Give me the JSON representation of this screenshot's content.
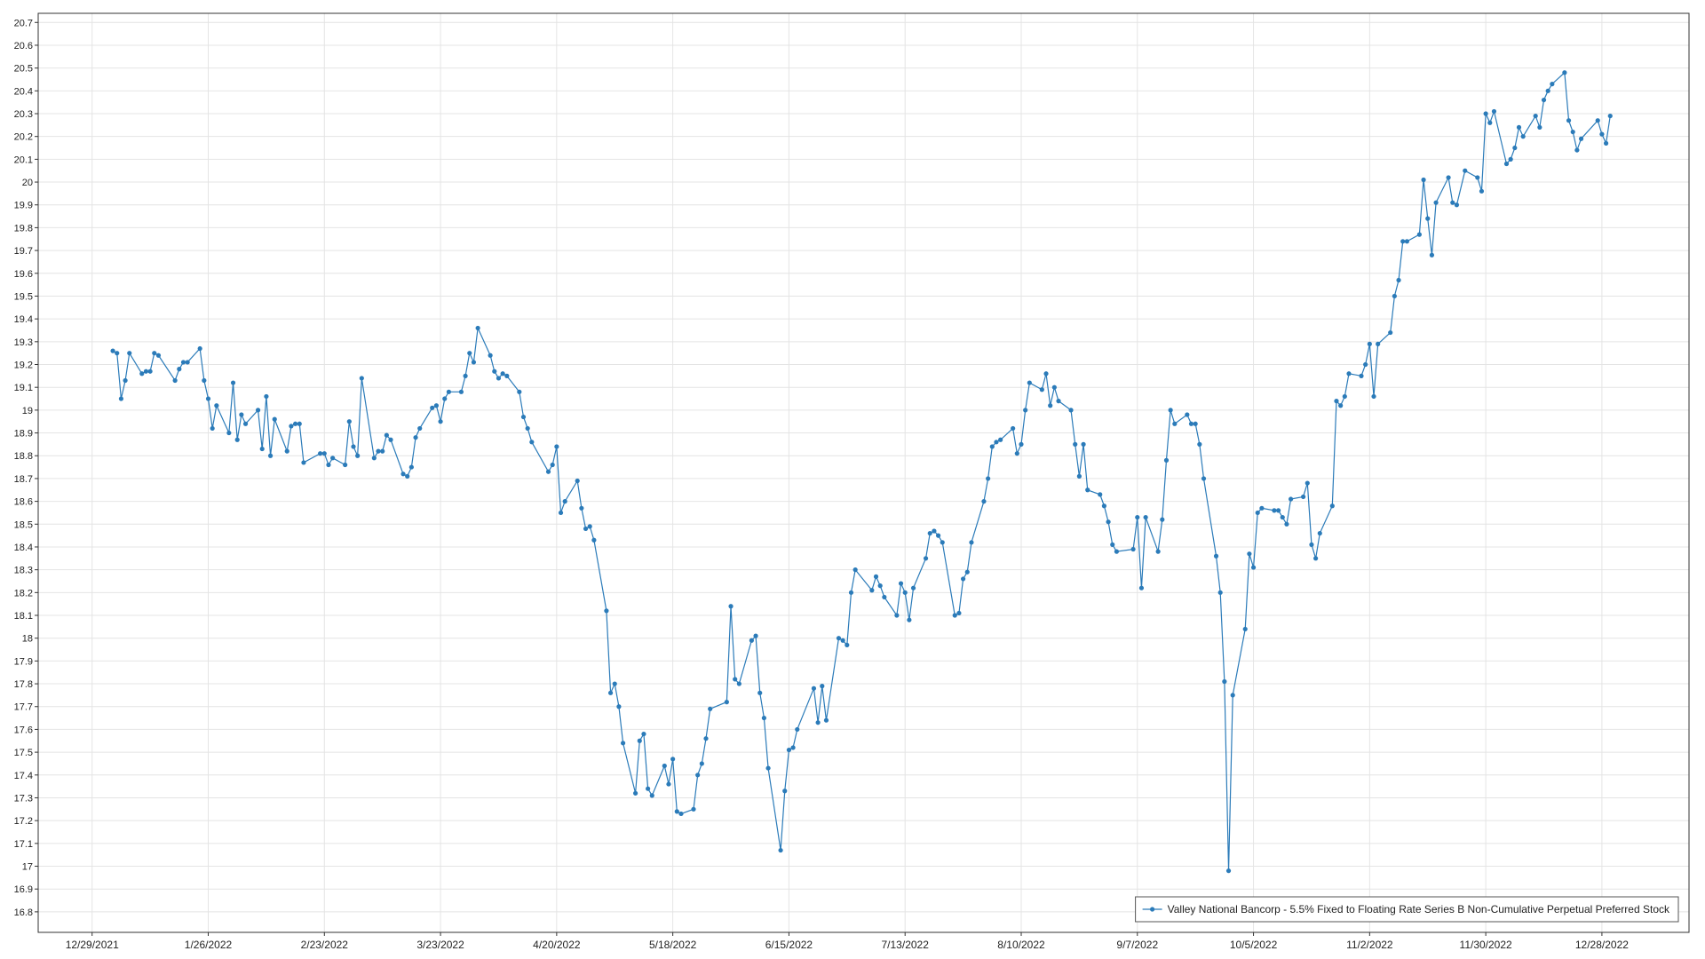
{
  "chart_data": {
    "type": "line",
    "xlim": [
      "12/16/2021",
      "1/18/2023"
    ],
    "ylim": [
      16.71,
      20.74
    ],
    "xticks": [
      "12/29/2021",
      "1/26/2022",
      "2/23/2022",
      "3/23/2022",
      "4/20/2022",
      "5/18/2022",
      "6/15/2022",
      "7/13/2022",
      "8/10/2022",
      "9/7/2022",
      "10/5/2022",
      "11/2/2022",
      "11/30/2022",
      "12/28/2022"
    ],
    "yticks": [
      16.8,
      16.9,
      17,
      17.1,
      17.2,
      17.3,
      17.4,
      17.5,
      17.6,
      17.7,
      17.8,
      17.9,
      18,
      18.1,
      18.2,
      18.3,
      18.4,
      18.5,
      18.6,
      18.7,
      18.8,
      18.9,
      19,
      19.1,
      19.2,
      19.3,
      19.4,
      19.5,
      19.6,
      19.7,
      19.8,
      19.9,
      20,
      20.1,
      20.2,
      20.3,
      20.4,
      20.5,
      20.6,
      20.7
    ],
    "grid": true,
    "legend": "lower right",
    "x": [
      "1/3/2022",
      "1/4/2022",
      "1/5/2022",
      "1/6/2022",
      "1/7/2022",
      "1/10/2022",
      "1/11/2022",
      "1/12/2022",
      "1/13/2022",
      "1/14/2022",
      "1/18/2022",
      "1/19/2022",
      "1/20/2022",
      "1/21/2022",
      "1/24/2022",
      "1/25/2022",
      "1/26/2022",
      "1/27/2022",
      "1/28/2022",
      "1/31/2022",
      "2/1/2022",
      "2/2/2022",
      "2/3/2022",
      "2/4/2022",
      "2/7/2022",
      "2/8/2022",
      "2/9/2022",
      "2/10/2022",
      "2/11/2022",
      "2/14/2022",
      "2/15/2022",
      "2/16/2022",
      "2/17/2022",
      "2/18/2022",
      "2/22/2022",
      "2/23/2022",
      "2/24/2022",
      "2/25/2022",
      "2/28/2022",
      "3/1/2022",
      "3/2/2022",
      "3/3/2022",
      "3/4/2022",
      "3/7/2022",
      "3/8/2022",
      "3/9/2022",
      "3/10/2022",
      "3/11/2022",
      "3/14/2022",
      "3/15/2022",
      "3/16/2022",
      "3/17/2022",
      "3/18/2022",
      "3/21/2022",
      "3/22/2022",
      "3/23/2022",
      "3/24/2022",
      "3/25/2022",
      "3/28/2022",
      "3/29/2022",
      "3/30/2022",
      "3/31/2022",
      "4/1/2022",
      "4/4/2022",
      "4/5/2022",
      "4/6/2022",
      "4/7/2022",
      "4/8/2022",
      "4/11/2022",
      "4/12/2022",
      "4/13/2022",
      "4/14/2022",
      "4/18/2022",
      "4/19/2022",
      "4/20/2022",
      "4/21/2022",
      "4/22/2022",
      "4/25/2022",
      "4/26/2022",
      "4/27/2022",
      "4/28/2022",
      "4/29/2022",
      "5/2/2022",
      "5/3/2022",
      "5/4/2022",
      "5/5/2022",
      "5/6/2022",
      "5/9/2022",
      "5/10/2022",
      "5/11/2022",
      "5/12/2022",
      "5/13/2022",
      "5/16/2022",
      "5/17/2022",
      "5/18/2022",
      "5/19/2022",
      "5/20/2022",
      "5/23/2022",
      "5/24/2022",
      "5/25/2022",
      "5/26/2022",
      "5/27/2022",
      "5/31/2022",
      "6/1/2022",
      "6/2/2022",
      "6/3/2022",
      "6/6/2022",
      "6/7/2022",
      "6/8/2022",
      "6/9/2022",
      "6/10/2022",
      "6/13/2022",
      "6/14/2022",
      "6/15/2022",
      "6/16/2022",
      "6/17/2022",
      "6/21/2022",
      "6/22/2022",
      "6/23/2022",
      "6/24/2022",
      "6/27/2022",
      "6/28/2022",
      "6/29/2022",
      "6/30/2022",
      "7/1/2022",
      "7/5/2022",
      "7/6/2022",
      "7/7/2022",
      "7/8/2022",
      "7/11/2022",
      "7/12/2022",
      "7/13/2022",
      "7/14/2022",
      "7/15/2022",
      "7/18/2022",
      "7/19/2022",
      "7/20/2022",
      "7/21/2022",
      "7/22/2022",
      "7/25/2022",
      "7/26/2022",
      "7/27/2022",
      "7/28/2022",
      "7/29/2022",
      "8/1/2022",
      "8/2/2022",
      "8/3/2022",
      "8/4/2022",
      "8/5/2022",
      "8/8/2022",
      "8/9/2022",
      "8/10/2022",
      "8/11/2022",
      "8/12/2022",
      "8/15/2022",
      "8/16/2022",
      "8/17/2022",
      "8/18/2022",
      "8/19/2022",
      "8/22/2022",
      "8/23/2022",
      "8/24/2022",
      "8/25/2022",
      "8/26/2022",
      "8/29/2022",
      "8/30/2022",
      "8/31/2022",
      "9/1/2022",
      "9/2/2022",
      "9/6/2022",
      "9/7/2022",
      "9/8/2022",
      "9/9/2022",
      "9/12/2022",
      "9/13/2022",
      "9/14/2022",
      "9/15/2022",
      "9/16/2022",
      "9/19/2022",
      "9/20/2022",
      "9/21/2022",
      "9/22/2022",
      "9/23/2022",
      "9/26/2022",
      "9/27/2022",
      "9/28/2022",
      "9/29/2022",
      "9/30/2022",
      "10/3/2022",
      "10/4/2022",
      "10/5/2022",
      "10/6/2022",
      "10/7/2022",
      "10/10/2022",
      "10/11/2022",
      "10/12/2022",
      "10/13/2022",
      "10/14/2022",
      "10/17/2022",
      "10/18/2022",
      "10/19/2022",
      "10/20/2022",
      "10/21/2022",
      "10/24/2022",
      "10/25/2022",
      "10/26/2022",
      "10/27/2022",
      "10/28/2022",
      "10/31/2022",
      "11/1/2022",
      "11/2/2022",
      "11/3/2022",
      "11/4/2022",
      "11/7/2022",
      "11/8/2022",
      "11/9/2022",
      "11/10/2022",
      "11/11/2022",
      "11/14/2022",
      "11/15/2022",
      "11/16/2022",
      "11/17/2022",
      "11/18/2022",
      "11/21/2022",
      "11/22/2022",
      "11/23/2022",
      "11/25/2022",
      "11/28/2022",
      "11/29/2022",
      "11/30/2022",
      "12/1/2022",
      "12/2/2022",
      "12/5/2022",
      "12/6/2022",
      "12/7/2022",
      "12/8/2022",
      "12/9/2022",
      "12/12/2022",
      "12/13/2022",
      "12/14/2022",
      "12/15/2022",
      "12/16/2022",
      "12/19/2022",
      "12/20/2022",
      "12/21/2022",
      "12/22/2022",
      "12/23/2022",
      "12/27/2022",
      "12/28/2022",
      "12/29/2022",
      "12/30/2022"
    ],
    "series": [
      {
        "name": "Valley National Bancorp - 5.5% Fixed to Floating Rate Series B Non-Cumulative Perpetual Preferred Stock",
        "color": "#2b7bb9",
        "values": [
          19.26,
          19.25,
          19.05,
          19.13,
          19.25,
          19.16,
          19.17,
          19.17,
          19.25,
          19.24,
          19.13,
          19.18,
          19.21,
          19.21,
          19.27,
          19.13,
          19.05,
          18.92,
          19.02,
          18.9,
          19.12,
          18.87,
          18.98,
          18.94,
          19.0,
          18.83,
          19.06,
          18.8,
          18.96,
          18.82,
          18.93,
          18.94,
          18.94,
          18.77,
          18.81,
          18.81,
          18.76,
          18.79,
          18.76,
          18.95,
          18.84,
          18.8,
          19.14,
          18.79,
          18.82,
          18.82,
          18.89,
          18.87,
          18.72,
          18.71,
          18.75,
          18.88,
          18.92,
          19.01,
          19.02,
          18.95,
          19.05,
          19.08,
          19.08,
          19.15,
          19.25,
          19.21,
          19.36,
          19.24,
          19.17,
          19.14,
          19.16,
          19.15,
          19.08,
          18.97,
          18.92,
          18.86,
          18.73,
          18.76,
          18.84,
          18.55,
          18.6,
          18.69,
          18.57,
          18.48,
          18.49,
          18.43,
          18.12,
          17.76,
          17.8,
          17.7,
          17.54,
          17.32,
          17.55,
          17.58,
          17.34,
          17.31,
          17.44,
          17.36,
          17.47,
          17.24,
          17.23,
          17.25,
          17.4,
          17.45,
          17.56,
          17.69,
          17.72,
          18.14,
          17.82,
          17.8,
          17.99,
          18.01,
          17.76,
          17.65,
          17.43,
          17.07,
          17.33,
          17.51,
          17.52,
          17.6,
          17.78,
          17.63,
          17.79,
          17.64,
          18.0,
          17.99,
          17.97,
          18.2,
          18.3,
          18.21,
          18.27,
          18.23,
          18.18,
          18.1,
          18.24,
          18.2,
          18.08,
          18.22,
          18.35,
          18.46,
          18.47,
          18.45,
          18.42,
          18.1,
          18.11,
          18.26,
          18.29,
          18.42,
          18.6,
          18.7,
          18.84,
          18.86,
          18.87,
          18.92,
          18.81,
          18.85,
          19.0,
          19.12,
          19.09,
          19.16,
          19.02,
          19.1,
          19.04,
          19.0,
          18.85,
          18.71,
          18.85,
          18.65,
          18.63,
          18.58,
          18.51,
          18.41,
          18.38,
          18.39,
          18.53,
          18.22,
          18.53,
          18.38,
          18.52,
          18.78,
          19.0,
          18.94,
          18.98,
          18.94,
          18.94,
          18.85,
          18.7,
          18.36,
          18.2,
          17.81,
          16.98,
          17.75,
          18.04,
          18.37,
          18.31,
          18.55,
          18.57,
          18.56,
          18.56,
          18.53,
          18.5,
          18.61,
          18.62,
          18.68,
          18.41,
          18.35,
          18.46,
          18.58,
          19.04,
          19.02,
          19.06,
          19.16,
          19.15,
          19.2,
          19.29,
          19.06,
          19.29,
          19.34,
          19.5,
          19.57,
          19.74,
          19.74,
          19.77,
          20.01,
          19.84,
          19.68,
          19.91,
          20.02,
          19.91,
          19.9,
          20.05,
          20.02,
          19.96,
          20.3,
          20.26,
          20.31,
          20.08,
          20.1,
          20.15,
          20.24,
          20.2,
          20.29,
          20.24,
          20.36,
          20.4,
          20.43,
          20.48,
          20.27,
          20.22,
          20.14,
          20.19,
          20.27,
          20.21,
          20.17,
          20.29
        ]
      }
    ]
  }
}
